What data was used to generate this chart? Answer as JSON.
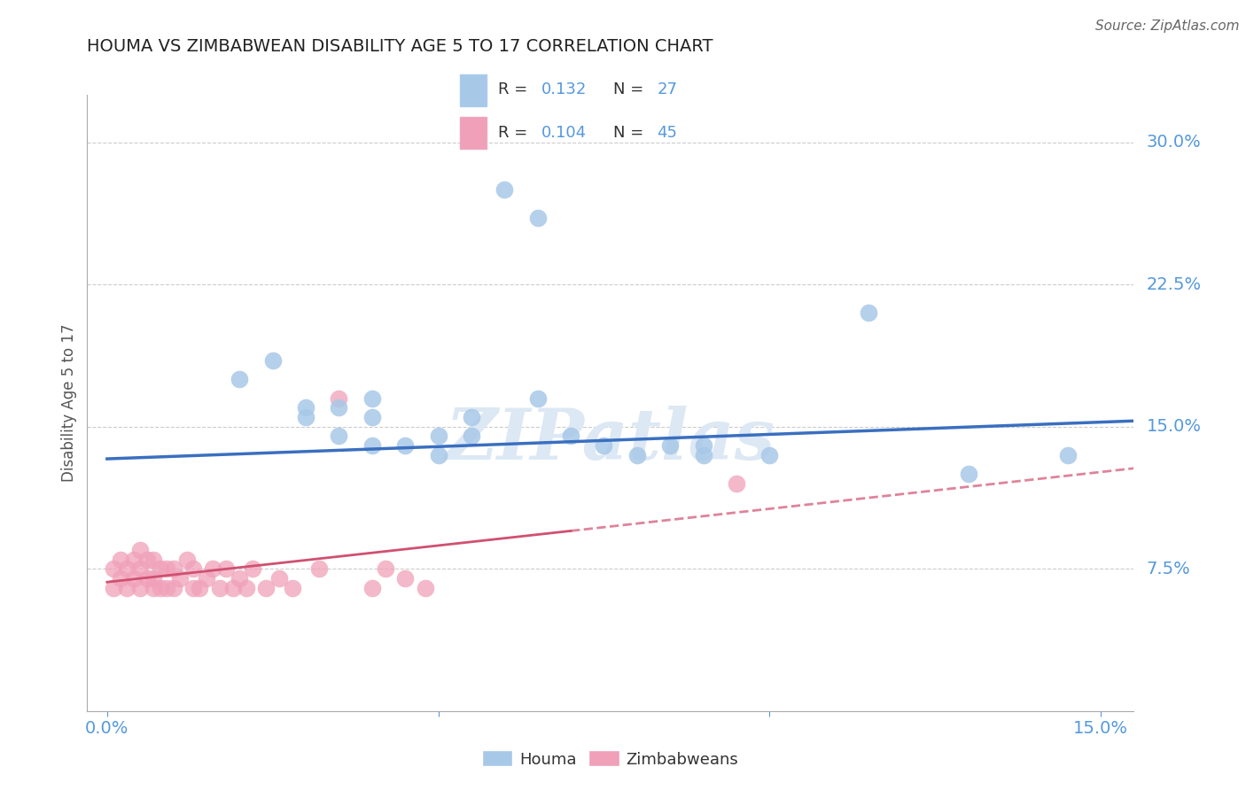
{
  "title": "HOUMA VS ZIMBABWEAN DISABILITY AGE 5 TO 17 CORRELATION CHART",
  "source": "Source: ZipAtlas.com",
  "ylabel_label": "Disability Age 5 to 17",
  "xlim": [
    -0.003,
    0.155
  ],
  "ylim": [
    0.0,
    0.325
  ],
  "xticks": [
    0.0,
    0.05,
    0.1,
    0.15
  ],
  "xtick_labels": [
    "0.0%",
    "",
    "",
    "15.0%"
  ],
  "ytick_labels_right": [
    "7.5%",
    "15.0%",
    "22.5%",
    "30.0%"
  ],
  "ytick_positions_right": [
    0.075,
    0.15,
    0.225,
    0.3
  ],
  "legend_R1": "0.132",
  "legend_N1": "27",
  "legend_R2": "0.104",
  "legend_N2": "45",
  "legend_label1": "Houma",
  "legend_label2": "Zimbabweans",
  "houma_color": "#a8c8e8",
  "zimbabwean_color": "#f0a0b8",
  "trend_houma_color": "#3a6fc0",
  "trend_zimbabwean_color": "#d05070",
  "watermark": "ZIPatlas",
  "houma_x": [
    0.02,
    0.025,
    0.03,
    0.03,
    0.035,
    0.035,
    0.04,
    0.04,
    0.04,
    0.045,
    0.05,
    0.05,
    0.055,
    0.055,
    0.06,
    0.065,
    0.065,
    0.07,
    0.075,
    0.08,
    0.085,
    0.09,
    0.09,
    0.1,
    0.115,
    0.13,
    0.145
  ],
  "houma_y": [
    0.175,
    0.185,
    0.16,
    0.155,
    0.16,
    0.145,
    0.165,
    0.155,
    0.14,
    0.14,
    0.145,
    0.135,
    0.155,
    0.145,
    0.275,
    0.26,
    0.165,
    0.145,
    0.14,
    0.135,
    0.14,
    0.14,
    0.135,
    0.135,
    0.21,
    0.125,
    0.135
  ],
  "zimbabwean_x": [
    0.001,
    0.001,
    0.002,
    0.002,
    0.003,
    0.003,
    0.004,
    0.004,
    0.005,
    0.005,
    0.005,
    0.006,
    0.006,
    0.007,
    0.007,
    0.007,
    0.008,
    0.008,
    0.009,
    0.009,
    0.01,
    0.01,
    0.011,
    0.012,
    0.013,
    0.013,
    0.014,
    0.015,
    0.016,
    0.017,
    0.018,
    0.019,
    0.02,
    0.021,
    0.022,
    0.024,
    0.026,
    0.028,
    0.032,
    0.035,
    0.04,
    0.042,
    0.045,
    0.048,
    0.095
  ],
  "zimbabwean_y": [
    0.065,
    0.075,
    0.07,
    0.08,
    0.065,
    0.075,
    0.07,
    0.08,
    0.065,
    0.075,
    0.085,
    0.07,
    0.08,
    0.065,
    0.07,
    0.08,
    0.065,
    0.075,
    0.065,
    0.075,
    0.065,
    0.075,
    0.07,
    0.08,
    0.065,
    0.075,
    0.065,
    0.07,
    0.075,
    0.065,
    0.075,
    0.065,
    0.07,
    0.065,
    0.075,
    0.065,
    0.07,
    0.065,
    0.075,
    0.165,
    0.065,
    0.075,
    0.07,
    0.065,
    0.12
  ],
  "trend_houma_x_start": 0.0,
  "trend_houma_x_end": 0.155,
  "trend_houma_y_start": 0.133,
  "trend_houma_y_end": 0.153,
  "trend_zimb_solid_x_start": 0.0,
  "trend_zimb_solid_x_end": 0.07,
  "trend_zimb_y_start": 0.068,
  "trend_zimb_y_end": 0.095,
  "trend_zimb_dash_x_start": 0.07,
  "trend_zimb_dash_x_end": 0.155,
  "trend_zimb_dash_y_start": 0.095,
  "trend_zimb_dash_y_end": 0.128
}
